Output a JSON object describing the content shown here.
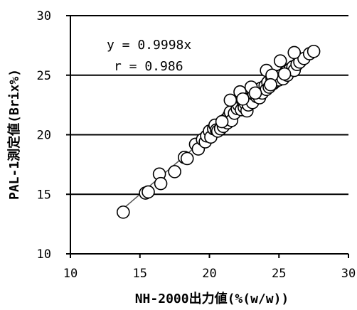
{
  "chart_data": {
    "type": "scatter",
    "xlabel": "NH-2000出力値(%(w/w))",
    "ylabel": "PAL-1測定値(Brix%)",
    "xlim": [
      10,
      30
    ],
    "ylim": [
      10,
      30
    ],
    "x_ticks": [
      "10",
      "15",
      "20",
      "25",
      "30"
    ],
    "y_ticks": [
      "10",
      "15",
      "20",
      "25",
      "30"
    ],
    "grid": "horizontal",
    "annotations": [
      "y = 0.9998x",
      "r = 0.986"
    ],
    "trendline": {
      "slope": 0.9998,
      "x_range": [
        13.8,
        27.5
      ]
    },
    "series": [
      {
        "points": [
          [
            13.8,
            13.5
          ],
          [
            15.4,
            15.1
          ],
          [
            15.6,
            15.2
          ],
          [
            16.4,
            16.7
          ],
          [
            16.5,
            15.9
          ],
          [
            17.5,
            16.9
          ],
          [
            18.2,
            18.1
          ],
          [
            18.4,
            18.0
          ],
          [
            19.0,
            19.2
          ],
          [
            19.2,
            18.8
          ],
          [
            19.5,
            19.6
          ],
          [
            19.7,
            19.4
          ],
          [
            19.8,
            19.9
          ],
          [
            20.0,
            20.3
          ],
          [
            20.1,
            19.8
          ],
          [
            20.3,
            20.5
          ],
          [
            20.4,
            20.8
          ],
          [
            20.5,
            20.4
          ],
          [
            20.6,
            20.3
          ],
          [
            20.8,
            20.5
          ],
          [
            21.0,
            20.7
          ],
          [
            21.2,
            21.3
          ],
          [
            21.3,
            21.0
          ],
          [
            21.4,
            21.6
          ],
          [
            21.5,
            21.9
          ],
          [
            21.6,
            21.2
          ],
          [
            21.8,
            21.8
          ],
          [
            22.0,
            22.2
          ],
          [
            22.1,
            22.5
          ],
          [
            22.3,
            22.1
          ],
          [
            22.4,
            22.8
          ],
          [
            22.5,
            22.3
          ],
          [
            22.6,
            22.6
          ],
          [
            22.7,
            22.0
          ],
          [
            22.8,
            22.5
          ],
          [
            23.0,
            23.1
          ],
          [
            23.1,
            22.7
          ],
          [
            23.2,
            23.4
          ],
          [
            23.4,
            23.2
          ],
          [
            23.5,
            23.7
          ],
          [
            23.6,
            23.1
          ],
          [
            23.7,
            23.9
          ],
          [
            23.8,
            23.5
          ],
          [
            24.0,
            24.1
          ],
          [
            24.1,
            23.8
          ],
          [
            24.2,
            24.4
          ],
          [
            24.3,
            24.0
          ],
          [
            24.5,
            24.7
          ],
          [
            24.6,
            24.3
          ],
          [
            24.8,
            24.5
          ],
          [
            24.9,
            24.9
          ],
          [
            25.0,
            24.6
          ],
          [
            25.2,
            25.0
          ],
          [
            25.3,
            24.7
          ],
          [
            25.5,
            25.3
          ],
          [
            25.6,
            25.0
          ],
          [
            25.8,
            25.5
          ],
          [
            26.0,
            25.7
          ],
          [
            26.1,
            25.4
          ],
          [
            26.3,
            25.9
          ],
          [
            26.5,
            26.1
          ],
          [
            26.8,
            26.4
          ],
          [
            27.2,
            26.8
          ],
          [
            27.5,
            27.0
          ],
          [
            21.5,
            22.9
          ],
          [
            22.2,
            23.6
          ],
          [
            22.4,
            23.0
          ],
          [
            23.0,
            24.0
          ],
          [
            24.1,
            25.4
          ],
          [
            24.5,
            25.0
          ],
          [
            25.1,
            26.2
          ],
          [
            26.1,
            26.9
          ],
          [
            20.9,
            21.1
          ],
          [
            23.3,
            23.5
          ],
          [
            24.4,
            24.2
          ],
          [
            25.4,
            25.1
          ]
        ]
      }
    ]
  }
}
